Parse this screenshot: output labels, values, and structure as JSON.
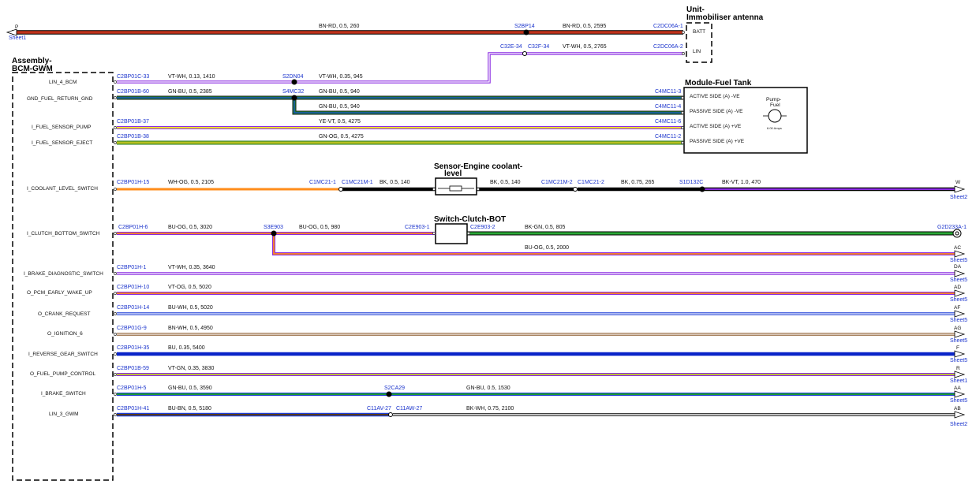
{
  "components": {
    "bcm": {
      "title_line1": "Assembly-",
      "title_line2": "BCM-GWM"
    },
    "immobiliser": {
      "title_line1": "Unit-",
      "title_line2": "Immobiliser antenna",
      "pin1": "BATT",
      "pin2": "LIN"
    },
    "fuel_tank": {
      "title": "Module-Fuel Tank",
      "pins": [
        "ACTIVE SIDE (A) -VE",
        "PASSIVE SIDE (A) -VE",
        "ACTIVE SIDE (A) +VE",
        "PASSIVE SIDE (A) +VE"
      ],
      "pump_line1": "Pump-",
      "pump_line2": "Fuel",
      "pump_rating": "6.00 Amps"
    },
    "coolant_sensor": {
      "title_line1": "Sensor-Engine coolant-",
      "title_line2": "level"
    },
    "clutch_switch": {
      "title": "Switch-Clutch-BOT"
    }
  },
  "bcm_pins": [
    "LIN_4_BCM",
    "GND_FUEL_RETURN_GND",
    "I_FUEL_SENSOR_PUMP",
    "I_FUEL_SENSOR_EJECT",
    "I_COOLANT_LEVEL_SWITCH",
    "I_CLUTCH_BOTTOM_SWITCH",
    "I_BRAKE_DIAGNOSTIC_SWITCH",
    "O_PCM_EARLY_WAKE_UP",
    "O_CRANK_REQUEST",
    "O_IGNITION_6",
    "I_REVERSE_GEAR_SWITCH",
    "O_FUEL_PUMP_CONTROL",
    "I_BRAKE_SWITCH",
    "LIN_3_GWM"
  ],
  "offsheet": {
    "left": {
      "letter": "P",
      "sheet": "Sheet1"
    },
    "right": [
      {
        "letter": "W",
        "sheet": "Sheet2"
      },
      {
        "letter": "AC",
        "sheet": "Sheet5"
      },
      {
        "letter": "DA",
        "sheet": "Sheet5"
      },
      {
        "letter": "AD",
        "sheet": "Sheet5"
      },
      {
        "letter": "AF",
        "sheet": "Sheet5"
      },
      {
        "letter": "AG",
        "sheet": "Sheet5"
      },
      {
        "letter": "F",
        "sheet": "Sheet5"
      },
      {
        "letter": "R",
        "sheet": "Sheet1"
      },
      {
        "letter": "AA",
        "sheet": "Sheet5"
      },
      {
        "letter": "AB",
        "sheet": "Sheet2"
      }
    ]
  },
  "connectors": {
    "c_lin4": "C2BP01C-33",
    "c_gnd": "C2BP01B-60",
    "c_pump": "C2BP01B-37",
    "c_eject": "C2BP01B-38",
    "c_cool": "C2BP01H-15",
    "c_clutch": "C2BP01H-6",
    "c_bdiag": "C2BP01H-1",
    "c_pcm": "C2BP01H-10",
    "c_crank": "C2BP01H-14",
    "c_ign": "C2BP01G-9",
    "c_rev": "C2BP01H-35",
    "c_fpc": "C2BP01B-59",
    "c_brake": "C2BP01H-5",
    "c_lin3": "C2BP01H-41",
    "c_batt": "C2DC06A-1",
    "c_lin": "C2DC06A-2",
    "c_tank1": "C4MC11-3",
    "c_tank2": "C4MC11-4",
    "c_tank3": "C4MC11-6",
    "c_tank4": "C4MC11-2",
    "c_cool_a": "C1MC21-1",
    "c_cool_b": "C1MC21M-1",
    "c_cool_c": "C1MC21M-2",
    "c_cool_d": "C1MC21-2",
    "c_cl_a": "C2E903-1",
    "c_cl_b": "C2E903-2",
    "c_g2d": "G2D233A-1",
    "c_32e": "C32E-34",
    "c_32f": "C32F-34",
    "c_11av": "C11AV-27",
    "c_11aw": "C11AW-27"
  },
  "splices": {
    "s_batt": "S2BP14",
    "s_lin": "S2DN04",
    "s_gnd": "S4MC32",
    "s_cool": "S1D132C",
    "s_clutch": "S3E903",
    "s_brake": "S2CA29"
  },
  "wires": {
    "w_batt1": "BN-RD,  0.5,  260",
    "w_batt2": "BN-RD,  0.5,  2595",
    "w_lin_top": "VT-WH,  0.5,  2765",
    "w_lin1": "VT-WH,  0.13,  1410",
    "w_lin2": "VT-WH,  0.35,  945",
    "w_gnd1": "GN-BU,  0.5,  2385",
    "w_gnd2": "GN-BU,  0.5,  940",
    "w_gnd3": "GN-BU,  0.5,  940",
    "w_pump": "YE-VT,  0.5,  4275",
    "w_eject": "GN-OG,  0.5,  4275",
    "w_cool1": "WH-OG,  0.5,  2105",
    "w_cool2": "BK,  0.5,  140",
    "w_cool3": "BK,  0.5,  140",
    "w_cool4": "BK,  0.75,  265",
    "w_cool5": "BK-VT,  1.0,  470",
    "w_cl1": "BU-OG,  0.5,  3020",
    "w_cl2": "BU-OG,  0.5,  980",
    "w_cl3": "BK-GN,  0.5,  805",
    "w_cl4": "BU-OG,  0.5,  2000",
    "w_bdiag": "VT-WH,  0.35,  3640",
    "w_pcm": "VT-OG,  0.5,  5020",
    "w_crank": "BU-WH,  0.5,  5020",
    "w_ign": "BN-WH,  0.5,  4950",
    "w_rev": "BU,  0.35,  5400",
    "w_fpc": "VT-GN,  0.35,  3830",
    "w_brake1": "GN-BU,  0.5,  3590",
    "w_brake2": "GN-BU,  0.5,  1530",
    "w_lin3a": "BU-BN,  0.5,  5180",
    "w_lin3b": "BK-WH,  0.75,  2100"
  }
}
